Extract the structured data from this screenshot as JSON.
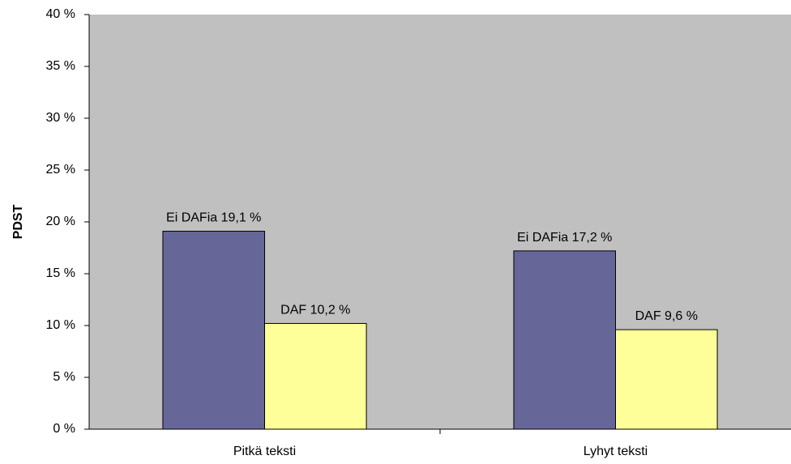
{
  "chart_data": {
    "type": "bar",
    "title": "",
    "xlabel": "",
    "ylabel": "PDST",
    "ylim": [
      0,
      40
    ],
    "yticks": [
      0,
      5,
      10,
      15,
      20,
      25,
      30,
      35,
      40
    ],
    "ytick_labels": [
      "0 %",
      "5 %",
      "10 %",
      "15 %",
      "20 %",
      "25 %",
      "30 %",
      "35 %",
      "40 %"
    ],
    "categories": [
      "Pitkä teksti",
      "Lyhyt teksti"
    ],
    "series": [
      {
        "values": [
          19.1,
          17.2
        ],
        "color": "#666699",
        "data_labels": [
          "Ei DAFia 19,1 %",
          "Ei DAFia 17,2 %"
        ]
      },
      {
        "values": [
          10.2,
          9.6
        ],
        "color": "#ffff99",
        "data_labels": [
          "DAF 10,2 %",
          "DAF 9,6 %"
        ]
      }
    ],
    "plot_background": "#c0c0c0",
    "grid": false,
    "legend": "none"
  }
}
